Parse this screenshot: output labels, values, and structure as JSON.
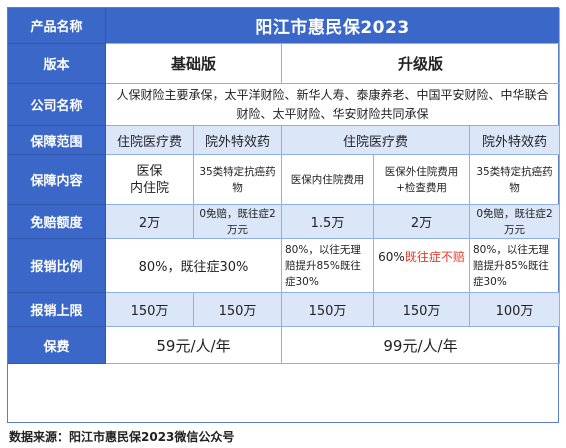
{
  "header": {
    "label": "产品名称",
    "title": "阳江市惠民保2023"
  },
  "version": {
    "label": "版本",
    "basic": "基础版",
    "upgrade": "升级版"
  },
  "company": {
    "label": "公司名称",
    "text": "人保财险主要承保，太平洋财险、新华人寿、泰康养老、中国平安财险、中华联合财险、太平财险、华安财险共同承保"
  },
  "scope": {
    "label": "保障范围",
    "basic_in": "住院医疗费",
    "basic_out": "院外特效药",
    "upgrade_in": "住院医疗费",
    "upgrade_out": "院外特效药"
  },
  "content": {
    "label": "保障内容",
    "basic_in": "医保\n内住院",
    "basic_out": "35类特定抗癌药物",
    "upgrade_in1": "医保内住院费用",
    "upgrade_in2": "医保外住院费用+检查费用",
    "upgrade_out": "35类特定抗癌药物"
  },
  "deductible": {
    "label": "免赔额度",
    "basic_in": "2万",
    "basic_out": "0免赔，既往症2万元",
    "upgrade_in1": "1.5万",
    "upgrade_in2": "2万",
    "upgrade_out": "0免赔，既往症2万元"
  },
  "ratio": {
    "label": "报销比例",
    "basic": "80%，既往症30%",
    "upgrade_in1": "80%，以往无理赔提升85%既往症30%",
    "upgrade_in2_a": "60%",
    "upgrade_in2_b": "既往症不赔",
    "upgrade_out": "80%，以往无理赔提升85%既往症30%"
  },
  "limit": {
    "label": "报销上限",
    "basic_in": "150万",
    "basic_out": "150万",
    "upgrade_in1": "150万",
    "upgrade_in2": "150万",
    "upgrade_out": "100万"
  },
  "premium": {
    "label": "保费",
    "basic": "59元/人/年",
    "upgrade": "99元/人/年"
  },
  "source": "数据来源：阳江市惠民保2023微信公众号",
  "colors": {
    "header_blue": "#3b68c8",
    "light_blue": "#dbe6f8",
    "highlight_red": "#e53b2a"
  }
}
